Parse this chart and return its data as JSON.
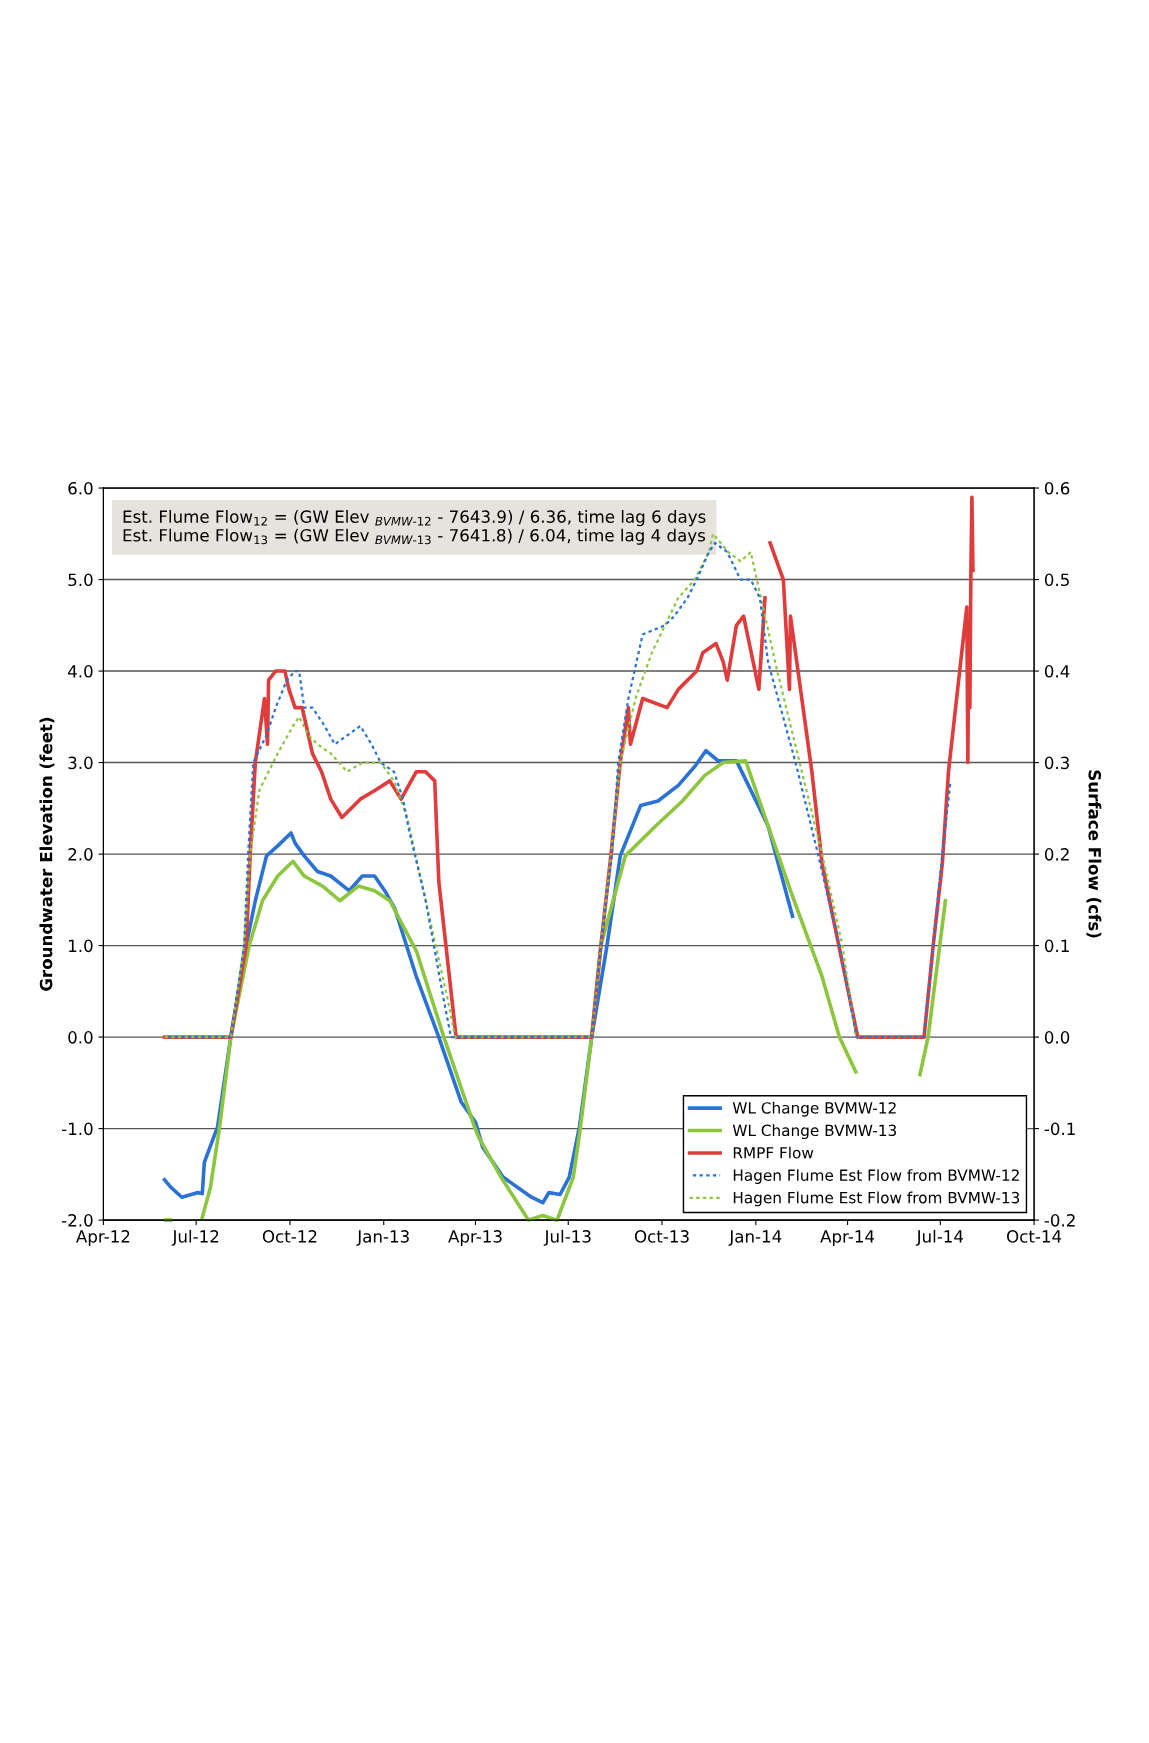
{
  "chart_data": {
    "type": "line",
    "xlabel": null,
    "ylabel": "Groundwater Elevation (feet)",
    "y2label": "Surface Flow (cfs)",
    "xlim": [
      "2012-04-01",
      "2014-10-01"
    ],
    "xticks": [
      {
        "value": "2012-04-01",
        "label": "Apr-12"
      },
      {
        "value": "2012-07-01",
        "label": "Jul-12"
      },
      {
        "value": "2012-10-01",
        "label": "Oct-12"
      },
      {
        "value": "2013-01-01",
        "label": "Jan-13"
      },
      {
        "value": "2013-04-01",
        "label": "Apr-13"
      },
      {
        "value": "2013-07-01",
        "label": "Jul-13"
      },
      {
        "value": "2013-10-01",
        "label": "Oct-13"
      },
      {
        "value": "2014-01-01",
        "label": "Jan-14"
      },
      {
        "value": "2014-04-01",
        "label": "Apr-14"
      },
      {
        "value": "2014-07-01",
        "label": "Jul-14"
      },
      {
        "value": "2014-10-01",
        "label": "Oct-14"
      }
    ],
    "ylim": [
      -2,
      6
    ],
    "yticks": [
      {
        "value": -2,
        "label": "-2.0"
      },
      {
        "value": -1,
        "label": "-1.0"
      },
      {
        "value": 0,
        "label": "0.0"
      },
      {
        "value": 1,
        "label": "1.0"
      },
      {
        "value": 2,
        "label": "2.0"
      },
      {
        "value": 3,
        "label": "3.0"
      },
      {
        "value": 4,
        "label": "4.0"
      },
      {
        "value": 5,
        "label": "5.0"
      },
      {
        "value": 6,
        "label": "6.0"
      }
    ],
    "y2lim": [
      -0.2,
      0.6
    ],
    "y2ticks": [
      {
        "value": -0.2,
        "label": "-0.2"
      },
      {
        "value": -0.1,
        "label": "-0.1"
      },
      {
        "value": 0,
        "label": "0.0"
      },
      0.1,
      0.2,
      0.3,
      0.4,
      0.5,
      0.6
    ],
    "grid": "y",
    "legend": "bottom right",
    "marker": "none",
    "annotations": [
      "Est. Flume Flow$_{12}$ = (GW Elev $_{BVMW-12}$ - 7643.9) / 6.36, time lag 6 days\nEst. Flume Flow$_{13}$ = (GW Elev $_{BVMW-13}$ - 7641.8) / 6.04, time lag 4 days"
    ],
    "series": [
      {
        "name": "WL Change BVMW-12",
        "color": "#2a72d4",
        "line_style": "solid",
        "axis": "y",
        "x": [
          "2012-05-31",
          "2012-06-06",
          "2012-06-17",
          "2012-07-02",
          "2012-07-07",
          "2012-07-09",
          "2012-07-22",
          "2012-08-04",
          "2012-08-19",
          "2012-08-28",
          "2012-09-08",
          "2012-09-19",
          "2012-10-02",
          "2012-10-06",
          "2012-10-15",
          "2012-10-28",
          "2012-11-10",
          "2012-11-28",
          "2012-12-11",
          "2012-12-23",
          "2013-01-02",
          "2013-01-12",
          "2013-02-02",
          "2013-02-24",
          "2013-03-18",
          "2013-04-01",
          "2013-04-08",
          "2013-04-28",
          "2013-05-26",
          "2013-06-06",
          "2013-06-12",
          "2013-06-23",
          "2013-07-02",
          "2013-07-12",
          "2013-07-24",
          "2013-08-08",
          "2013-08-21",
          "2013-09-10",
          "2013-09-27",
          "2013-10-17",
          "2013-11-03",
          "2013-11-13",
          "2013-11-25",
          "2013-12-13",
          "2013-12-20",
          "2014-01-13",
          "2014-02-06"
        ],
        "values": [
          -1.56,
          -1.64,
          -1.75,
          -1.7,
          -1.71,
          -1.37,
          -0.98,
          0.0,
          1.0,
          1.49,
          1.98,
          2.09,
          2.23,
          2.12,
          1.98,
          1.81,
          1.76,
          1.6,
          1.76,
          1.76,
          1.6,
          1.4,
          0.66,
          0.0,
          -0.71,
          -0.93,
          -1.2,
          -1.53,
          -1.75,
          -1.81,
          -1.7,
          -1.72,
          -1.53,
          -0.98,
          0.0,
          1.0,
          1.98,
          2.53,
          2.58,
          2.75,
          2.97,
          3.13,
          3.02,
          3.02,
          2.86,
          2.31,
          1.32
        ]
      },
      {
        "name": "WL Change BVMW-13",
        "color": "#8cc63f",
        "line_style": "solid",
        "axis": "y",
        "x": [
          "2012-06-01",
          "2012-06-06",
          "2012-06-20",
          "2012-07-07",
          "2012-07-15",
          "2012-07-24",
          "2012-08-04",
          "2012-08-22",
          "2012-09-04",
          "2012-09-19",
          "2012-10-02",
          "2012-10-04",
          "2012-10-15",
          "2012-11-02",
          "2012-11-19",
          "2012-12-07",
          "2012-12-23",
          "2013-01-07",
          "2013-02-02",
          "2013-03-01",
          "2013-03-31",
          "2013-04-04",
          "2013-04-26",
          "2013-05-23",
          "2013-06-06",
          "2013-06-20",
          "2013-07-06",
          "2013-07-13",
          "2013-07-24",
          "2013-08-02",
          "2013-08-26",
          "2013-09-25",
          "2013-10-21",
          "2013-11-12",
          "2013-11-30",
          "2013-12-22",
          "2014-01-13",
          "2014-02-04",
          "2014-03-07",
          "2014-03-24",
          "2014-04-09",
          "2014-05-15",
          "2014-06-11",
          "2014-06-19",
          "2014-07-06"
        ],
        "values": [
          -2.0,
          -2.0,
          null,
          -1.97,
          -1.64,
          -0.98,
          0.0,
          1.0,
          1.49,
          1.76,
          1.9,
          1.92,
          1.76,
          1.65,
          1.49,
          1.65,
          1.6,
          1.49,
          0.94,
          0.0,
          -0.98,
          -1.09,
          -1.53,
          -2.0,
          -1.95,
          -2.0,
          -1.53,
          -0.98,
          0.0,
          1.0,
          1.98,
          2.31,
          2.58,
          2.86,
          3.0,
          3.02,
          2.31,
          1.6,
          0.66,
          0.0,
          -0.38,
          null,
          -0.41,
          0.0,
          1.49
        ]
      },
      {
        "name": "RMPF Flow",
        "color": "#e03c3c",
        "line_style": "solid",
        "axis": "y2",
        "x": [
          "2012-05-31",
          "2012-08-04",
          "2012-08-19",
          "2012-08-23",
          "2012-08-28",
          "2012-09-06",
          "2012-09-09",
          "2012-09-10",
          "2012-09-17",
          "2012-09-26",
          "2012-09-30",
          "2012-10-06",
          "2012-10-13",
          "2012-10-17",
          "2012-10-23",
          "2012-11-01",
          "2012-11-10",
          "2012-11-21",
          "2012-12-09",
          "2012-12-24",
          "2013-01-07",
          "2013-01-18",
          "2013-02-02",
          "2013-02-11",
          "2013-02-20",
          "2013-02-24",
          "2013-03-06",
          "2013-03-13",
          "2013-07-24",
          "2013-08-02",
          "2013-08-12",
          "2013-08-21",
          "2013-08-29",
          "2013-08-31",
          "2013-09-12",
          "2013-10-06",
          "2013-10-17",
          "2013-11-04",
          "2013-11-10",
          "2013-11-23",
          "2013-11-30",
          "2013-12-04",
          "2013-12-13",
          "2013-12-20",
          "2014-01-04",
          "2014-01-10",
          "2014-01-12",
          "2014-01-15",
          "2014-01-28",
          "2014-02-03",
          "2014-02-04",
          "2014-02-25",
          "2014-03-07",
          "2014-03-16",
          "2014-03-29",
          "2014-04-11",
          "2014-06-15",
          "2014-06-24",
          "2014-07-03",
          "2014-07-09",
          "2014-07-20",
          "2014-07-27",
          "2014-07-28",
          "2014-07-29",
          "2014-07-30",
          "2014-07-31",
          "2014-08-01",
          "2014-08-02"
        ],
        "values": [
          0.0,
          0.0,
          0.1,
          0.2,
          0.3,
          0.37,
          0.32,
          0.39,
          0.4,
          0.4,
          0.38,
          0.36,
          0.36,
          0.34,
          0.31,
          0.29,
          0.26,
          0.24,
          0.26,
          0.27,
          0.28,
          0.26,
          0.29,
          0.29,
          0.28,
          0.17,
          0.07,
          0.0,
          0.0,
          0.1,
          0.2,
          0.3,
          0.36,
          0.32,
          0.37,
          0.36,
          0.38,
          0.4,
          0.42,
          0.43,
          0.41,
          0.39,
          0.45,
          0.46,
          0.38,
          0.48,
          null,
          0.54,
          0.5,
          0.38,
          0.46,
          0.29,
          0.19,
          0.14,
          0.07,
          0.0,
          0.0,
          0.1,
          0.19,
          0.29,
          0.4,
          0.47,
          0.3,
          0.45,
          0.36,
          0.51,
          0.59,
          0.51
        ]
      },
      {
        "name": "Hagen Flume Est Flow from BVMW-12",
        "color": "#2a72d4",
        "line_style": "dashed",
        "axis": "y2",
        "x": [
          "2012-05-31",
          "2012-08-04",
          "2012-08-17",
          "2012-08-21",
          "2012-08-26",
          "2012-09-08",
          "2012-09-17",
          "2012-09-28",
          "2012-10-06",
          "2012-10-10",
          "2012-10-15",
          "2012-10-23",
          "2012-11-04",
          "2012-11-14",
          "2012-12-09",
          "2012-12-20",
          "2012-12-29",
          "2013-01-11",
          "2013-01-20",
          "2013-01-25",
          "2013-02-11",
          "2013-03-01",
          "2013-03-08",
          "2013-07-24",
          "2013-08-02",
          "2013-08-13",
          "2013-08-19",
          "2013-08-29",
          "2013-09-12",
          "2013-10-04",
          "2013-10-13",
          "2013-10-26",
          "2013-11-04",
          "2013-11-16",
          "2013-11-22",
          "2013-12-04",
          "2013-12-17",
          "2013-12-27",
          "2014-01-05",
          "2014-01-13",
          "2014-02-09",
          "2014-03-03",
          "2014-03-24",
          "2014-04-10",
          "2014-06-15",
          "2014-06-24",
          "2014-07-03",
          "2014-07-11"
        ],
        "values": [
          0.0,
          0.0,
          0.1,
          0.2,
          0.3,
          0.33,
          0.36,
          0.39,
          0.4,
          0.4,
          0.36,
          0.36,
          0.34,
          0.32,
          0.34,
          0.32,
          0.3,
          0.29,
          0.26,
          0.23,
          0.15,
          0.04,
          0.0,
          0.0,
          0.1,
          0.2,
          0.3,
          0.37,
          0.44,
          0.45,
          0.46,
          0.48,
          0.5,
          0.53,
          0.54,
          0.53,
          0.5,
          0.5,
          0.48,
          0.41,
          0.3,
          0.2,
          0.1,
          0.0,
          0.0,
          0.1,
          0.2,
          0.28
        ]
      },
      {
        "name": "Hagen Flume Est Flow from BVMW-13",
        "color": "#8cc63f",
        "line_style": "dashed",
        "axis": "y2",
        "x": [
          "2012-05-31",
          "2012-08-04",
          "2012-08-17",
          "2012-08-23",
          "2012-09-01",
          "2012-09-19",
          "2012-10-04",
          "2012-10-10",
          "2012-10-19",
          "2012-10-28",
          "2012-11-10",
          "2012-11-26",
          "2012-12-11",
          "2012-12-29",
          "2013-01-11",
          "2013-01-24",
          "2013-02-11",
          "2013-03-05",
          "2013-03-12",
          "2013-07-24",
          "2013-08-02",
          "2013-08-12",
          "2013-08-21",
          "2013-09-05",
          "2013-09-21",
          "2013-10-17",
          "2013-11-02",
          "2013-11-16",
          "2013-11-20",
          "2013-12-05",
          "2013-12-17",
          "2013-12-27",
          "2014-01-04",
          "2014-01-22",
          "2014-02-13",
          "2014-03-07",
          "2014-03-27",
          "2014-04-09",
          "2014-06-15"
        ],
        "values": [
          0.0,
          0.0,
          0.1,
          0.2,
          0.27,
          0.31,
          0.34,
          0.35,
          0.33,
          0.32,
          0.31,
          0.29,
          0.3,
          0.3,
          0.28,
          0.24,
          0.15,
          0.04,
          0.0,
          0.0,
          0.1,
          0.2,
          0.3,
          0.37,
          0.42,
          0.48,
          0.5,
          0.53,
          0.55,
          0.53,
          0.52,
          0.53,
          0.49,
          0.4,
          0.3,
          0.2,
          0.1,
          0.0,
          0.0
        ]
      }
    ]
  }
}
